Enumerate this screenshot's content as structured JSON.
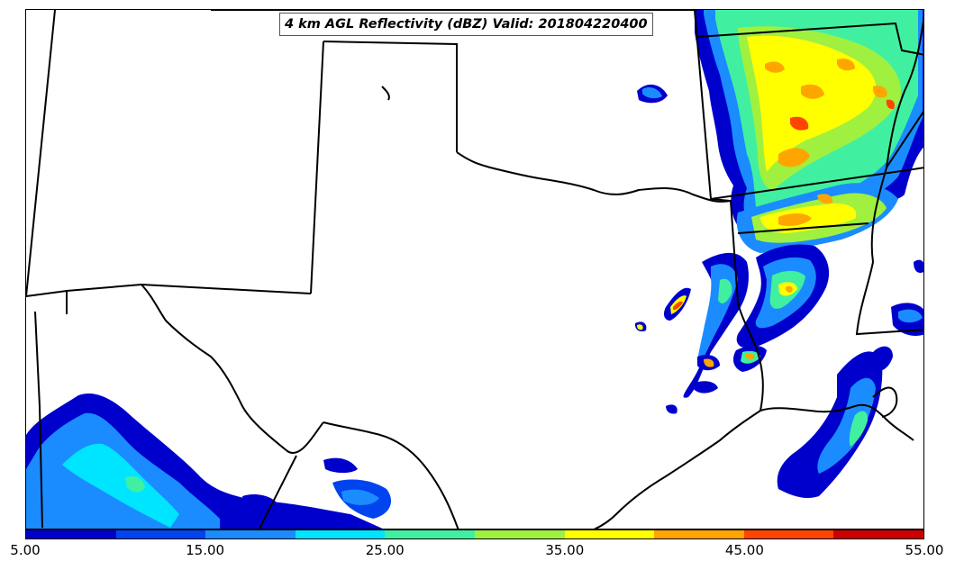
{
  "title": "4 km AGL Reflectivity (dBZ) Valid: 201804220400",
  "colorbar": {
    "colors": [
      "#0000cd",
      "#0044f0",
      "#1a8cff",
      "#00e5ff",
      "#40f0a0",
      "#a0f040",
      "#ffff00",
      "#ffa500",
      "#ff4500",
      "#cc0000"
    ],
    "ticks": [
      "5.00",
      "15.00",
      "25.00",
      "35.00",
      "45.00",
      "55.00"
    ]
  },
  "map": {
    "land": "#ffffff",
    "boundary_color": "#000000"
  }
}
